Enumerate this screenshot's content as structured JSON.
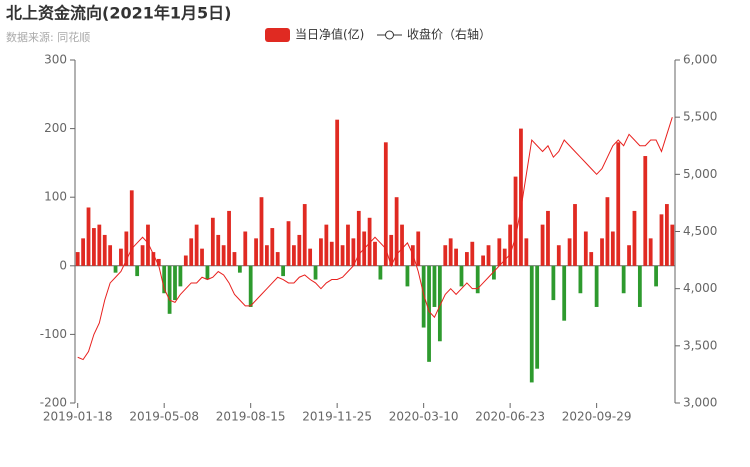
{
  "chart_data": {
    "type": "bar_line",
    "title": "北上资金流向(2021年1月5日)",
    "subtitle": "数据来源: 同花顺",
    "categories": [
      "2019-01-18",
      null,
      null,
      null,
      null,
      null,
      null,
      null,
      null,
      null,
      null,
      null,
      null,
      null,
      null,
      null,
      "2019-05-08",
      null,
      null,
      null,
      null,
      null,
      null,
      null,
      null,
      null,
      null,
      null,
      null,
      null,
      null,
      null,
      "2019-08-15",
      null,
      null,
      null,
      null,
      null,
      null,
      null,
      null,
      null,
      null,
      null,
      null,
      null,
      null,
      null,
      "2019-11-25",
      null,
      null,
      null,
      null,
      null,
      null,
      null,
      null,
      null,
      null,
      null,
      null,
      null,
      null,
      null,
      "2020-03-10",
      null,
      null,
      null,
      null,
      null,
      null,
      null,
      null,
      null,
      null,
      null,
      null,
      null,
      null,
      null,
      "2020-06-23",
      null,
      null,
      null,
      null,
      null,
      null,
      null,
      null,
      null,
      null,
      null,
      null,
      null,
      null,
      null,
      "2020-09-29",
      null,
      null,
      null,
      null,
      null,
      null,
      null,
      null,
      null,
      null,
      null,
      null,
      null,
      null
    ],
    "series": [
      {
        "name": "当日净值(亿)",
        "color": "#e02a22",
        "negative_color": "#2e9a2e",
        "values": [
          20,
          40,
          85,
          55,
          60,
          45,
          30,
          -10,
          25,
          50,
          110,
          -15,
          30,
          60,
          20,
          10,
          -40,
          -70,
          -50,
          -30,
          15,
          40,
          60,
          25,
          -20,
          70,
          45,
          30,
          80,
          20,
          -10,
          50,
          -60,
          40,
          100,
          30,
          55,
          20,
          -15,
          65,
          30,
          45,
          90,
          25,
          -20,
          40,
          60,
          35,
          213,
          30,
          60,
          40,
          80,
          50,
          70,
          35,
          -20,
          180,
          45,
          100,
          60,
          -30,
          30,
          50,
          -90,
          -140,
          -60,
          -110,
          30,
          40,
          25,
          -30,
          20,
          35,
          -40,
          15,
          30,
          -20,
          40,
          25,
          60,
          130,
          200,
          40,
          -170,
          -150,
          60,
          80,
          -50,
          30,
          -80,
          40,
          90,
          -40,
          50,
          20,
          -60,
          40,
          100,
          50,
          180,
          -40,
          30,
          80,
          -60,
          160,
          40,
          -30,
          75,
          90,
          60
        ]
      },
      {
        "name": "收盘价（右轴）",
        "color": "#e8201e",
        "axis": "y2",
        "values": [
          3400,
          3380,
          3450,
          3600,
          3700,
          3900,
          4050,
          4100,
          4150,
          4250,
          4350,
          4400,
          4450,
          4400,
          4300,
          4200,
          4000,
          3900,
          3880,
          3950,
          4000,
          4050,
          4050,
          4100,
          4080,
          4100,
          4150,
          4120,
          4050,
          3950,
          3900,
          3850,
          3850,
          3900,
          3950,
          4000,
          4050,
          4100,
          4080,
          4050,
          4050,
          4100,
          4120,
          4080,
          4050,
          4000,
          4050,
          4080,
          4080,
          4100,
          4150,
          4200,
          4300,
          4350,
          4400,
          4450,
          4400,
          4350,
          4200,
          4300,
          4350,
          4400,
          4300,
          4150,
          3950,
          3800,
          3750,
          3850,
          3950,
          4000,
          3950,
          4000,
          4050,
          4000,
          4000,
          4050,
          4100,
          4150,
          4200,
          4250,
          4300,
          4450,
          4700,
          5000,
          5300,
          5250,
          5200,
          5250,
          5150,
          5200,
          5300,
          5250,
          5200,
          5150,
          5100,
          5050,
          5000,
          5050,
          5150,
          5250,
          5300,
          5250,
          5350,
          5300,
          5250,
          5250,
          5300,
          5300,
          5200,
          5350,
          5500
        ]
      }
    ],
    "ylim": [
      -200,
      300
    ],
    "yticks": [
      -200,
      -100,
      0,
      100,
      200,
      300
    ],
    "y2lim": [
      3000,
      6000
    ],
    "y2ticks": [
      {
        "value": 3000,
        "label": "3,000"
      },
      {
        "value": 3500,
        "label": "3,500"
      },
      {
        "value": 4000,
        "label": "4,000"
      },
      {
        "value": 4500,
        "label": "4,500"
      },
      {
        "value": 5000,
        "label": "5,000"
      },
      {
        "value": 5500,
        "label": "5,500"
      },
      {
        "value": 6000,
        "label": "6,000"
      }
    ]
  }
}
